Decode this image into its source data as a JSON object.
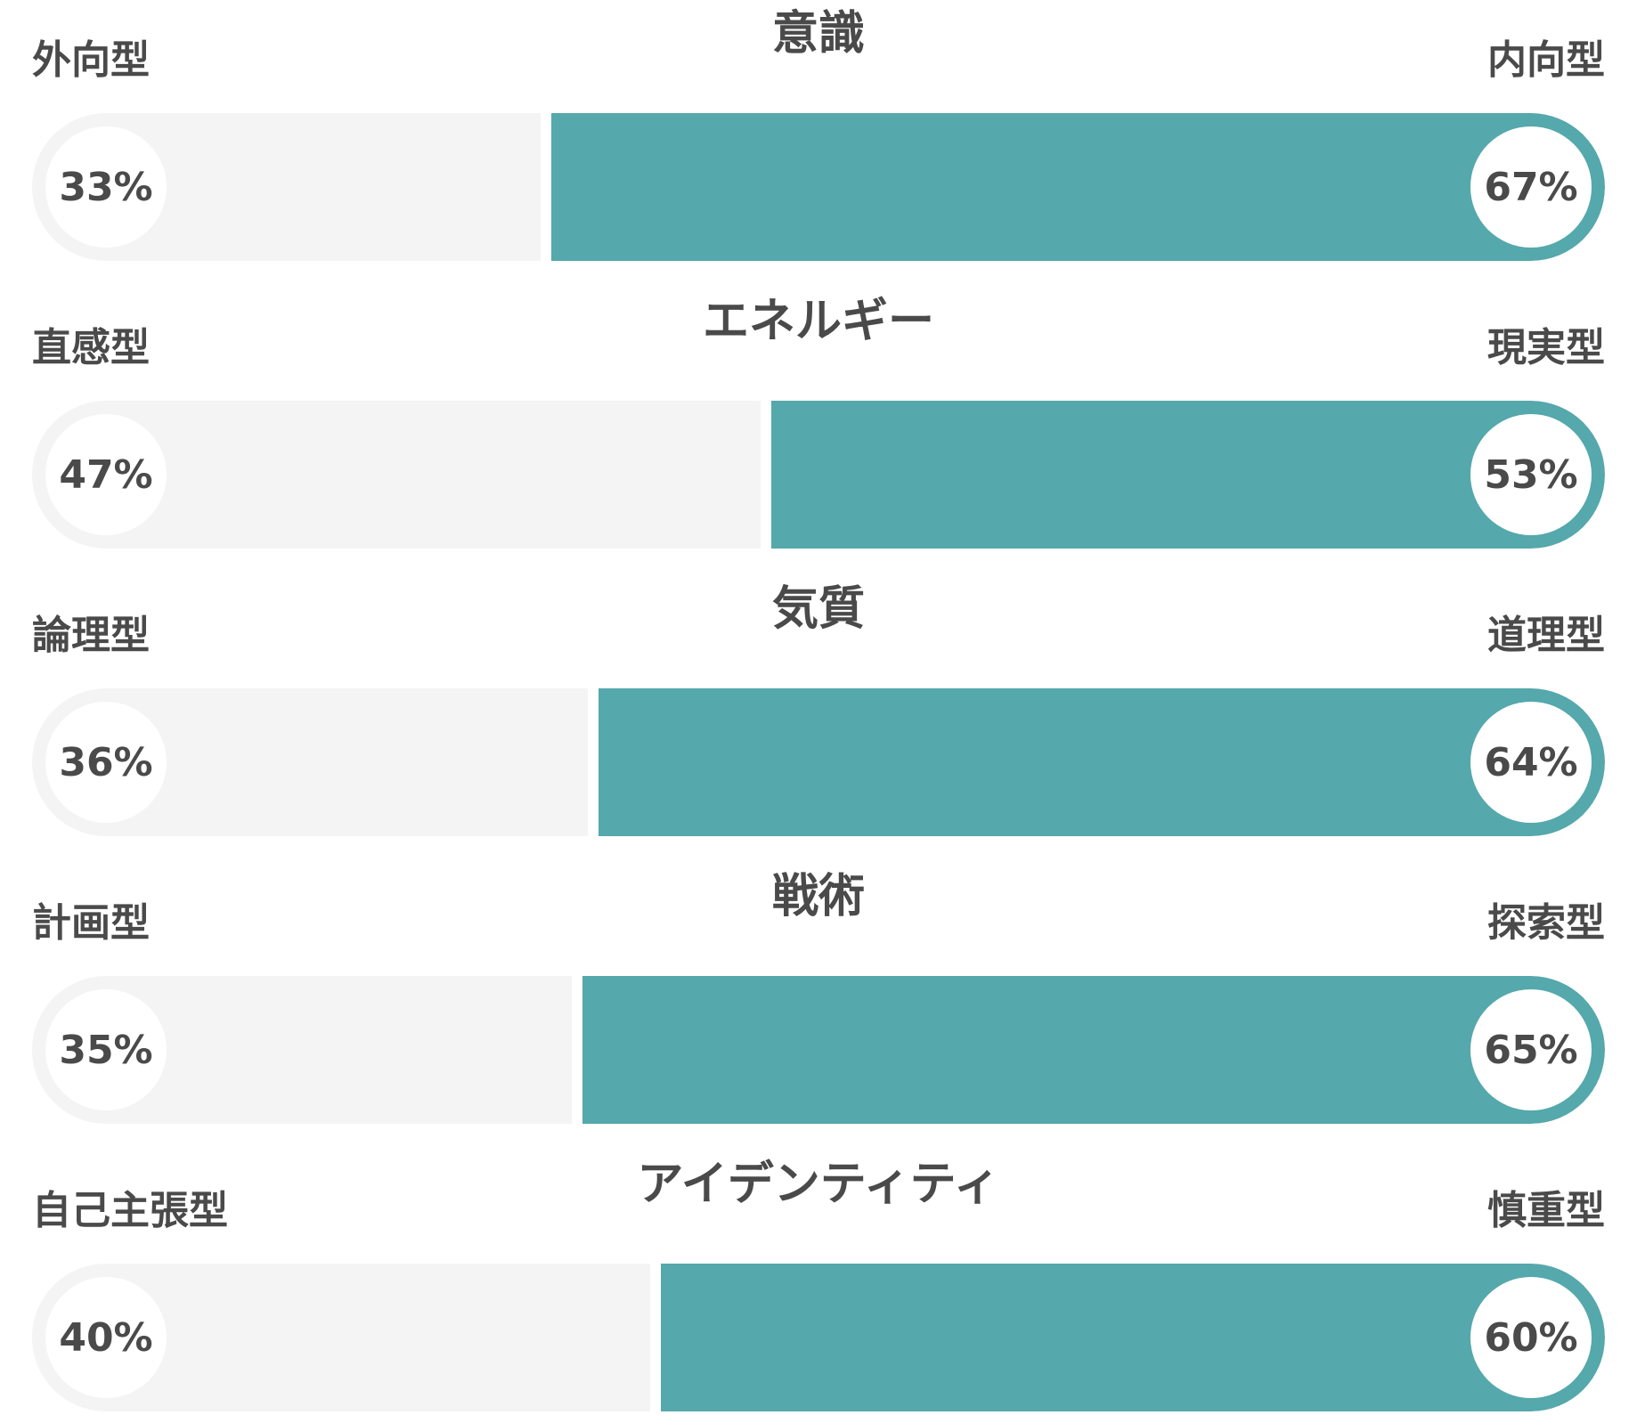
{
  "chart_data": {
    "type": "bar",
    "orientation": "horizontal",
    "stacked": true,
    "colors": {
      "track": "#f4f4f4",
      "fill": "#55a8ab",
      "text": "#4a4a4a"
    },
    "traits": [
      {
        "title": "意識",
        "left": {
          "label": "外向型",
          "value": 33,
          "text": "33%"
        },
        "right": {
          "label": "内向型",
          "value": 67,
          "text": "67%"
        }
      },
      {
        "title": "エネルギー",
        "left": {
          "label": "直感型",
          "value": 47,
          "text": "47%"
        },
        "right": {
          "label": "現実型",
          "value": 53,
          "text": "53%"
        }
      },
      {
        "title": "気質",
        "left": {
          "label": "論理型",
          "value": 36,
          "text": "36%"
        },
        "right": {
          "label": "道理型",
          "value": 64,
          "text": "64%"
        }
      },
      {
        "title": "戦術",
        "left": {
          "label": "計画型",
          "value": 35,
          "text": "35%"
        },
        "right": {
          "label": "探索型",
          "value": 65,
          "text": "65%"
        }
      },
      {
        "title": "アイデンティティ",
        "left": {
          "label": "自己主張型",
          "value": 40,
          "text": "40%"
        },
        "right": {
          "label": "慎重型",
          "value": 60,
          "text": "60%"
        }
      }
    ]
  }
}
